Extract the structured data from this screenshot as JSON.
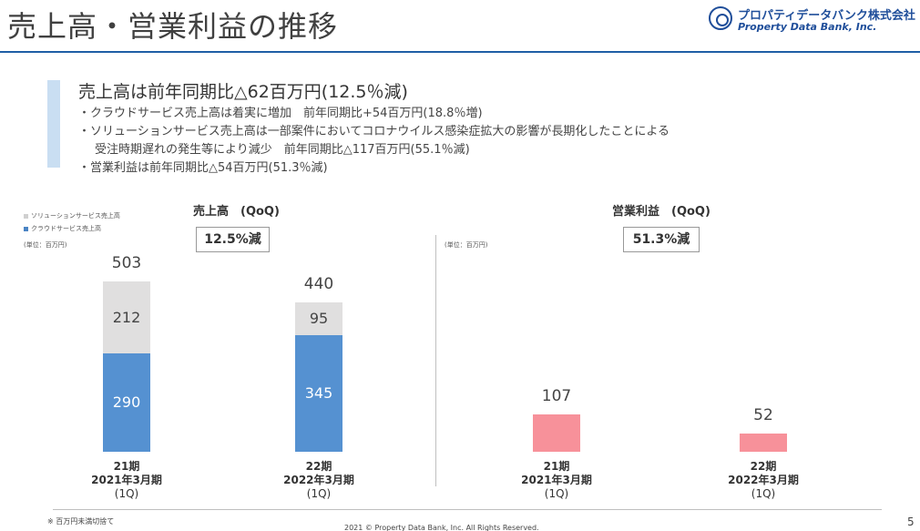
{
  "header": {
    "title": "売上高・営業利益の推移",
    "logo_jp": "プロパティデータバンク株式会社",
    "logo_en": "Property Data Bank, Inc."
  },
  "summary": {
    "headline": "売上高は前年同期比△62百万円(12.5％減)",
    "bullets": [
      "・クラウドサービス売上高は着実に増加　前年同期比+54百万円(18.8％増)",
      "・ソリューションサービス売上高は一部案件においてコロナウイルス感染症拡大の影響が長期化したことによる",
      "受注時期遅れの発生等により減少　前年同期比△117百万円(55.1％減)",
      "・営業利益は前年同期比△54百万円(51.3％減)"
    ]
  },
  "colors": {
    "solution": "#e0dfdf",
    "cloud": "#5591d1",
    "operating_profit": "#f7919a",
    "accent": "#1f5fa6"
  },
  "chart_data": [
    {
      "type": "bar",
      "stacked": true,
      "title": "売上高　(QoQ)",
      "change_label": "12.5%減",
      "unit": "(単位：百万円)",
      "legend": [
        "ソリューションサービス売上高",
        "クラウドサービス売上高"
      ],
      "categories": [
        {
          "period": "21期",
          "fy": "2021年3月期",
          "q": "(1Q)"
        },
        {
          "period": "22期",
          "fy": "2022年3月期",
          "q": "(1Q)"
        }
      ],
      "series": [
        {
          "name": "クラウドサービス売上高",
          "values": [
            290,
            345
          ]
        },
        {
          "name": "ソリューションサービス売上高",
          "values": [
            212,
            95
          ]
        }
      ],
      "totals": [
        503,
        440
      ]
    },
    {
      "type": "bar",
      "title": "営業利益　(QoQ)",
      "change_label": "51.3%減",
      "unit": "(単位：百万円)",
      "categories": [
        {
          "period": "21期",
          "fy": "2021年3月期",
          "q": "(1Q)"
        },
        {
          "period": "22期",
          "fy": "2022年3月期",
          "q": "(1Q)"
        }
      ],
      "series": [
        {
          "name": "営業利益",
          "values": [
            107,
            52
          ]
        }
      ]
    }
  ],
  "footer": {
    "note": "※ 百万円未満切捨て",
    "copyright": "2021 © Property Data Bank, Inc. All Rights Reserved.",
    "page": "5"
  }
}
